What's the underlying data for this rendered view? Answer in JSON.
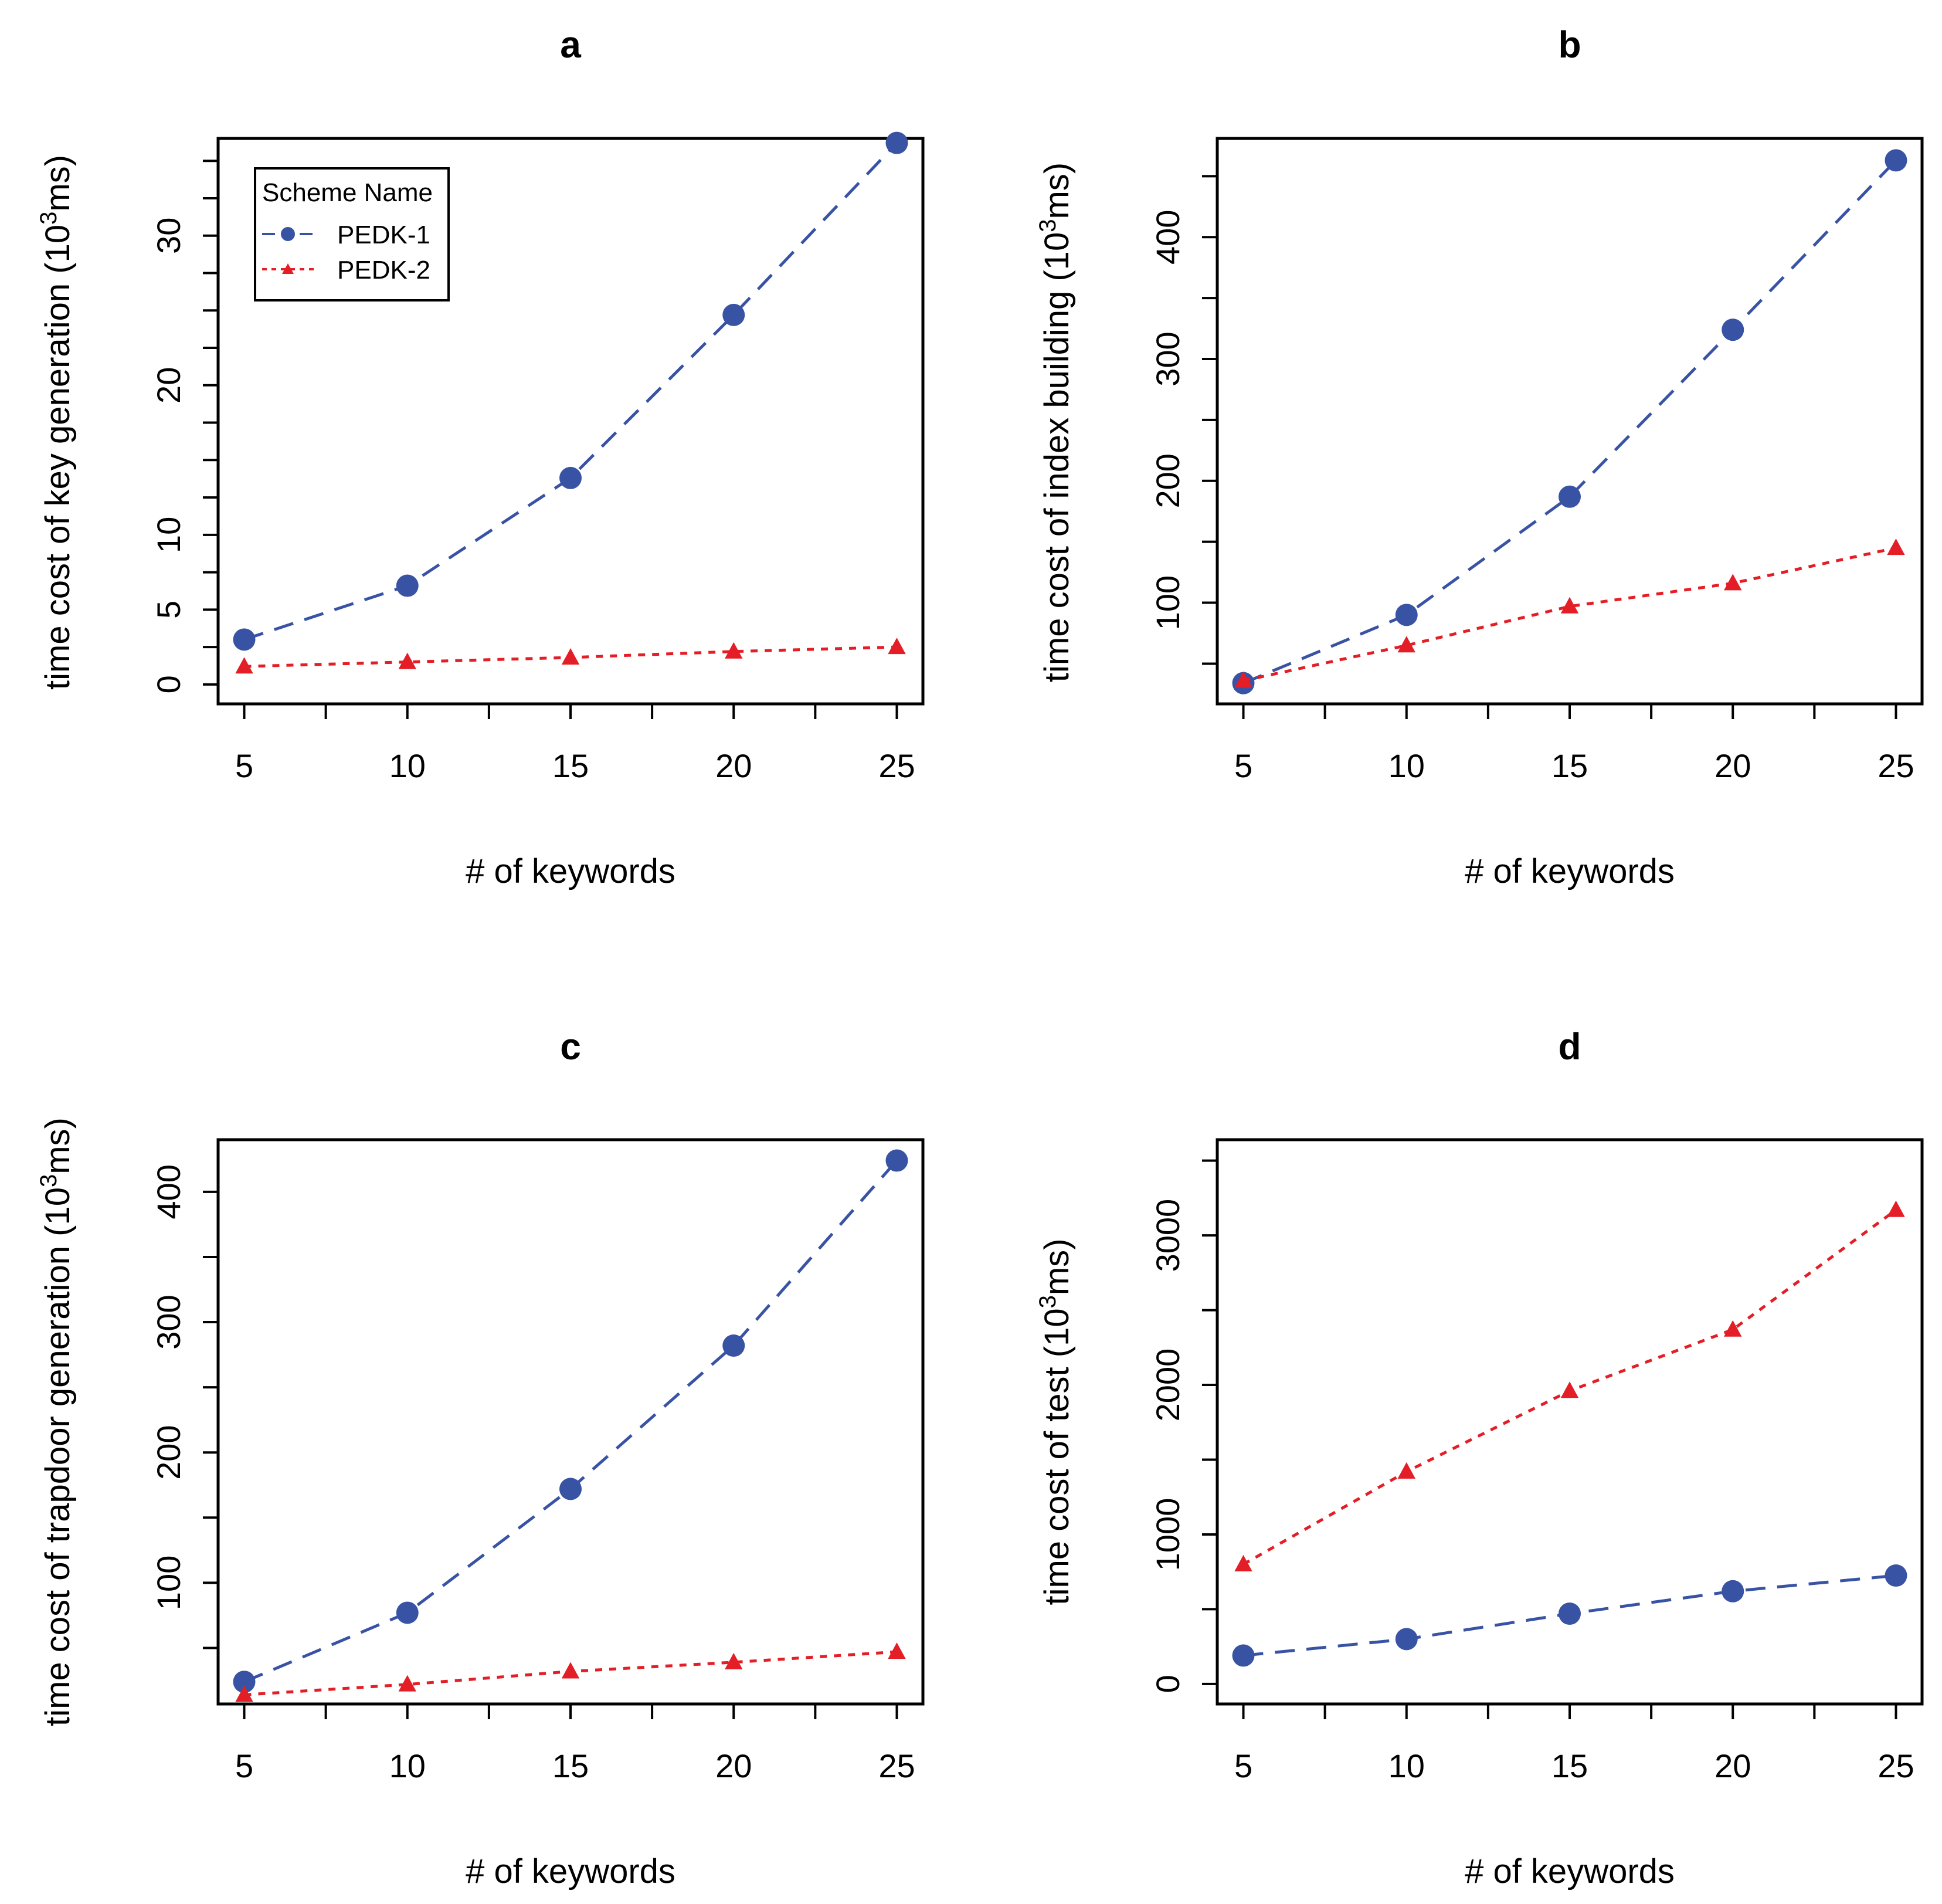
{
  "chart_data": [
    {
      "id": "a",
      "type": "line",
      "title": "a",
      "xlabel": "# of keywords",
      "ylabel": "time cost of key generation (10^3ms)",
      "ylabel_base": "time cost of key generation (10",
      "ylabel_exp": "3",
      "ylabel_unit": "ms)",
      "x": [
        5,
        10,
        15,
        20,
        25
      ],
      "xlim": [
        4.2,
        25.8
      ],
      "xticks": [
        5,
        10,
        15,
        20,
        25
      ],
      "xticklabels": [
        "5",
        "10",
        "15",
        "20",
        "25"
      ],
      "ylim": [
        -1.3,
        36.5
      ],
      "yticks": [
        0,
        5,
        10,
        20,
        30
      ],
      "yticklabels": [
        "0",
        "5",
        "10",
        "20",
        "30"
      ],
      "series": [
        {
          "name": "PEDK-1",
          "color": "#3953a4",
          "marker": "circle",
          "line": "dashed",
          "values": [
            3.0,
            6.6,
            13.8,
            24.7,
            36.2
          ]
        },
        {
          "name": "PEDK-2",
          "color": "#e41e26",
          "marker": "triangle",
          "line": "dotted",
          "values": [
            1.2,
            1.5,
            1.8,
            2.2,
            2.5
          ]
        }
      ],
      "legend": {
        "title": "Scheme Name",
        "placement": "top-left"
      }
    },
    {
      "id": "b",
      "type": "line",
      "title": "b",
      "xlabel": "# of keywords",
      "ylabel": "time cost of index building (10^3ms)",
      "ylabel_base": "time cost of index building (10",
      "ylabel_exp": "3",
      "ylabel_unit": "ms)",
      "x": [
        5,
        10,
        15,
        20,
        25
      ],
      "xlim": [
        4.2,
        25.8
      ],
      "xticks": [
        5,
        10,
        15,
        20,
        25
      ],
      "xticklabels": [
        "5",
        "10",
        "15",
        "20",
        "25"
      ],
      "ylim": [
        17,
        481
      ],
      "yticks": [
        100,
        200,
        300,
        400
      ],
      "yticklabels": [
        "100",
        "200",
        "300",
        "400"
      ],
      "series": [
        {
          "name": "PEDK-1",
          "color": "#3953a4",
          "marker": "circle",
          "line": "dashed",
          "values": [
            34,
            90,
            187,
            324,
            463
          ]
        },
        {
          "name": "PEDK-2",
          "color": "#e41e26",
          "marker": "triangle",
          "line": "dotted",
          "values": [
            36,
            65,
            97,
            116,
            145
          ]
        }
      ]
    },
    {
      "id": "c",
      "type": "line",
      "title": "c",
      "xlabel": "# of keywords",
      "ylabel": "time cost of trapdoor generation (10^3ms)",
      "ylabel_base": "time cost of trapdoor generation (10",
      "ylabel_exp": "3",
      "ylabel_unit": "ms)",
      "x": [
        5,
        10,
        15,
        20,
        25
      ],
      "xlim": [
        4.2,
        25.8
      ],
      "xticks": [
        5,
        10,
        15,
        20,
        25
      ],
      "xticklabels": [
        "5",
        "10",
        "15",
        "20",
        "25"
      ],
      "ylim": [
        7,
        440
      ],
      "yticks": [
        100,
        200,
        300,
        400
      ],
      "yticklabels": [
        "100",
        "200",
        "300",
        "400"
      ],
      "series": [
        {
          "name": "PEDK-1",
          "color": "#3953a4",
          "marker": "circle",
          "line": "dashed",
          "values": [
            24,
            77,
            172,
            282,
            424
          ]
        },
        {
          "name": "PEDK-2",
          "color": "#e41e26",
          "marker": "triangle",
          "line": "dotted",
          "values": [
            14,
            22,
            32,
            39,
            47
          ]
        }
      ]
    },
    {
      "id": "d",
      "type": "line",
      "title": "d",
      "xlabel": "# of keywords",
      "ylabel": "time cost of test (10^3ms)",
      "ylabel_base": "time cost of test (10",
      "ylabel_exp": "3",
      "ylabel_unit": "ms)",
      "x": [
        5,
        10,
        15,
        20,
        25
      ],
      "xlim": [
        4.2,
        25.8
      ],
      "xticks": [
        5,
        10,
        15,
        20,
        25
      ],
      "xticklabels": [
        "5",
        "10",
        "15",
        "20",
        "25"
      ],
      "ylim": [
        -134,
        3640
      ],
      "yticks": [
        0,
        1000,
        2000,
        3000
      ],
      "yticklabels": [
        "0",
        "1000",
        "2000",
        "3000"
      ],
      "series": [
        {
          "name": "PEDK-1",
          "color": "#3953a4",
          "marker": "circle",
          "line": "dashed",
          "values": [
            190,
            300,
            470,
            620,
            725
          ]
        },
        {
          "name": "PEDK-2",
          "color": "#e41e26",
          "marker": "triangle",
          "line": "dotted",
          "values": [
            800,
            1420,
            1960,
            2370,
            3170
          ]
        }
      ]
    }
  ]
}
